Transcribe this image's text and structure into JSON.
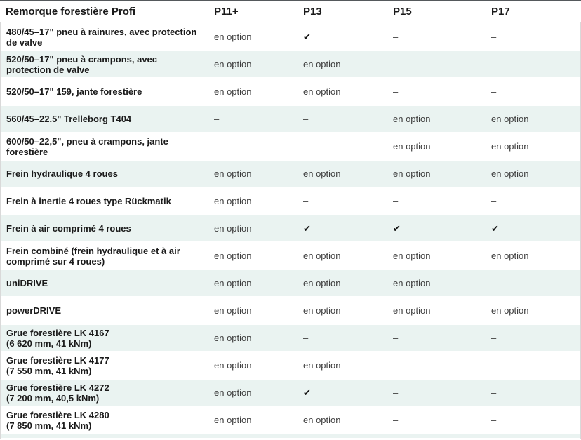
{
  "table": {
    "title": "Remorque forestière Profi",
    "columns": [
      "P11+",
      "P13",
      "P15",
      "P17"
    ],
    "check_symbol": "✔",
    "dash_symbol": "–",
    "option_label": "en option",
    "rows": [
      {
        "label": "480/45–17\" pneu à rainures, avec protection de valve",
        "sublabel": "",
        "values": [
          "en option",
          "✔",
          "–",
          "–"
        ]
      },
      {
        "label": "520/50–17\" pneu à crampons, avec protection de valve",
        "sublabel": "",
        "values": [
          "en option",
          "en option",
          "–",
          "–"
        ]
      },
      {
        "label": "520/50–17\" 159, jante forestière",
        "sublabel": "",
        "values": [
          "en option",
          "en option",
          "–",
          "–"
        ]
      },
      {
        "label": "560/45–22.5\" Trelleborg T404",
        "sublabel": "",
        "values": [
          "–",
          "–",
          "en option",
          "en option"
        ]
      },
      {
        "label": "600/50–22,5\", pneu à crampons, jante forestière",
        "sublabel": "",
        "values": [
          "–",
          "–",
          "en option",
          "en option"
        ]
      },
      {
        "label": "Frein hydraulique 4 roues",
        "sublabel": "",
        "values": [
          "en option",
          "en option",
          "en option",
          "en option"
        ]
      },
      {
        "label": "Frein à inertie 4 roues type Rückmatik",
        "sublabel": "",
        "values": [
          "en option",
          "–",
          "–",
          "–"
        ]
      },
      {
        "label": "Frein à air comprimé 4 roues",
        "sublabel": "",
        "values": [
          "en option",
          "✔",
          "✔",
          "✔"
        ]
      },
      {
        "label": "Frein combiné (frein hydraulique et à air comprimé sur 4 roues)",
        "sublabel": "",
        "values": [
          "en option",
          "en option",
          "en option",
          "en option"
        ]
      },
      {
        "label": "uniDRIVE",
        "sublabel": "",
        "values": [
          "en option",
          "en option",
          "en option",
          "–"
        ]
      },
      {
        "label": "powerDRIVE",
        "sublabel": "",
        "values": [
          "en option",
          "en option",
          "en option",
          "en option"
        ]
      },
      {
        "label": "Grue forestière LK 4167",
        "sublabel": "(6 620 mm, 41 kNm)",
        "values": [
          "en option",
          "–",
          "–",
          "–"
        ]
      },
      {
        "label": "Grue forestière LK 4177",
        "sublabel": "(7 550 mm, 41 kNm)",
        "values": [
          "en option",
          "en option",
          "–",
          "–"
        ]
      },
      {
        "label": "Grue forestière LK 4272",
        "sublabel": "(7 200 mm, 40,5 kNm)",
        "values": [
          "en option",
          "✔",
          "–",
          "–"
        ]
      },
      {
        "label": "Grue forestière LK 4280",
        "sublabel": "(7 850 mm, 41 kNm)",
        "values": [
          "en option",
          "en option",
          "–",
          "–"
        ]
      }
    ]
  },
  "colors": {
    "stripe_row_bg": "#eaf3f1",
    "header_top_border": "#55595c",
    "divider": "#cccccc",
    "side_border": "#d9d9d9",
    "label_text": "#1a1a1a",
    "cell_text": "#3d3d3d"
  }
}
